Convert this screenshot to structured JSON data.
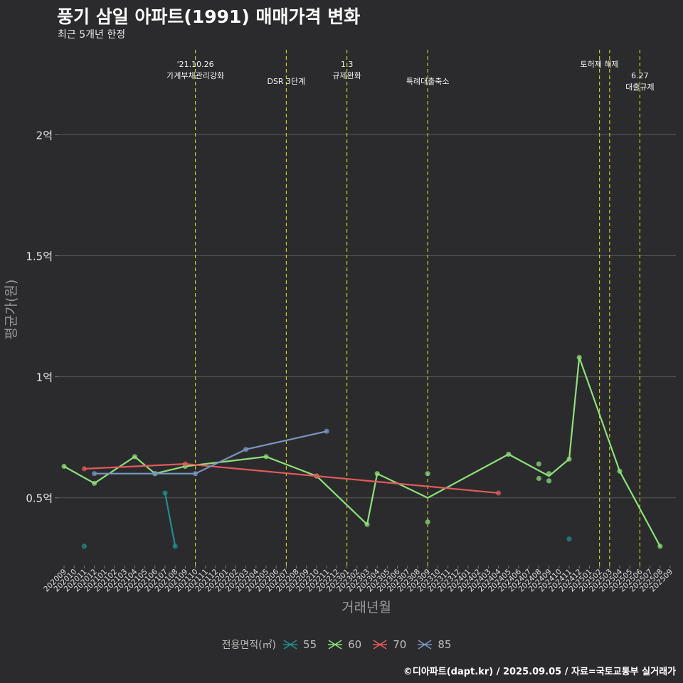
{
  "header": {
    "title": "풍기 삼일 아파트(1991) 매매가격 변화",
    "subtitle": "최근 5개년 한정"
  },
  "caption": "©디아파트(dapt.kr) / 2025.09.05 / 자료=국토교통부 실거래가",
  "legend": {
    "title": "전용면적(㎡)"
  },
  "colors": {
    "background": "#2b2b2d",
    "grid": "#5a5a5a",
    "event_line": "#c8cc1e",
    "s55": "#1f8f8f",
    "s60": "#8de07a",
    "s70": "#e25a5a",
    "s85": "#7a95c2"
  },
  "chart_data": {
    "type": "line",
    "title": "풍기 삼일 아파트(1991) 매매가격 변화",
    "xlabel": "거래년월",
    "ylabel": "평균가(원)",
    "ylim": [
      0.22,
      2.38
    ],
    "yticks": [
      {
        "value": 0.5,
        "label": "0.5억"
      },
      {
        "value": 1.0,
        "label": "1억"
      },
      {
        "value": 1.5,
        "label": "1.5억"
      },
      {
        "value": 2.0,
        "label": "2억"
      }
    ],
    "categories": [
      "202009",
      "202010",
      "202011",
      "202012",
      "202101",
      "202102",
      "202103",
      "202104",
      "202105",
      "202106",
      "202107",
      "202108",
      "202109",
      "202110",
      "202111",
      "202112",
      "202201",
      "202202",
      "202203",
      "202204",
      "202205",
      "202206",
      "202207",
      "202208",
      "202209",
      "202210",
      "202211",
      "202212",
      "202301",
      "202302",
      "202303",
      "202304",
      "202305",
      "202306",
      "202307",
      "202308",
      "202309",
      "202310",
      "202311",
      "202312",
      "202401",
      "202402",
      "202403",
      "202404",
      "202405",
      "202406",
      "202407",
      "202408",
      "202409",
      "202410",
      "202411",
      "202412",
      "202501",
      "202502",
      "202503",
      "202504",
      "202505",
      "202506",
      "202507",
      "202508",
      "202509"
    ],
    "events": [
      {
        "month": "202110",
        "lines": [
          "'21.10.26",
          "가계부채관리강화"
        ],
        "level": 0
      },
      {
        "month": "202207",
        "lines": [
          "DSR 3단계"
        ],
        "level": 1
      },
      {
        "month": "202301",
        "lines": [
          "1.3",
          "규제완화"
        ],
        "level": 0
      },
      {
        "month": "202309",
        "lines": [
          "특례대출축소"
        ],
        "level": 1
      },
      {
        "month": "202502",
        "lines": [
          "토허제 해제"
        ],
        "level": 0
      },
      {
        "month": "202503",
        "lines": [],
        "level": 0
      },
      {
        "month": "202506",
        "lines": [
          "6.27",
          "대출규제"
        ],
        "level": 2
      }
    ],
    "series": [
      {
        "name": "55",
        "line": [
          [
            "202107",
            0.52
          ],
          [
            "202108",
            0.3
          ]
        ],
        "points": [
          [
            "202011",
            0.3
          ],
          [
            "202107",
            0.52
          ],
          [
            "202108",
            0.3
          ],
          [
            "202411",
            0.33
          ]
        ]
      },
      {
        "name": "60",
        "line": [
          [
            "202009",
            0.63
          ],
          [
            "202012",
            0.56
          ],
          [
            "202104",
            0.67
          ],
          [
            "202106",
            0.6
          ],
          [
            "202109",
            0.63
          ],
          [
            "202205",
            0.67
          ],
          [
            "202210",
            0.59
          ],
          [
            "202303",
            0.39
          ],
          [
            "202304",
            0.6
          ],
          [
            "202309",
            0.5
          ],
          [
            "202405",
            0.68
          ],
          [
            "202409",
            0.59
          ],
          [
            "202411",
            0.66
          ],
          [
            "202412",
            1.08
          ],
          [
            "202504",
            0.61
          ],
          [
            "202508",
            0.3
          ]
        ],
        "points": [
          [
            "202009",
            0.63
          ],
          [
            "202012",
            0.56
          ],
          [
            "202104",
            0.67
          ],
          [
            "202106",
            0.6
          ],
          [
            "202109",
            0.63
          ],
          [
            "202205",
            0.67
          ],
          [
            "202210",
            0.59
          ],
          [
            "202303",
            0.39
          ],
          [
            "202304",
            0.6
          ],
          [
            "202309",
            0.6
          ],
          [
            "202309",
            0.4
          ],
          [
            "202405",
            0.68
          ],
          [
            "202408",
            0.64
          ],
          [
            "202408",
            0.58
          ],
          [
            "202409",
            0.6
          ],
          [
            "202409",
            0.57
          ],
          [
            "202411",
            0.66
          ],
          [
            "202412",
            1.08
          ],
          [
            "202504",
            0.61
          ],
          [
            "202508",
            0.3
          ]
        ]
      },
      {
        "name": "70",
        "line": [
          [
            "202011",
            0.62
          ],
          [
            "202109",
            0.64
          ],
          [
            "202210",
            0.59
          ],
          [
            "202404",
            0.52
          ]
        ],
        "points": [
          [
            "202011",
            0.62
          ],
          [
            "202109",
            0.64
          ],
          [
            "202210",
            0.59
          ],
          [
            "202404",
            0.52
          ]
        ]
      },
      {
        "name": "85",
        "line": [
          [
            "202012",
            0.6
          ],
          [
            "202106",
            0.6
          ],
          [
            "202110",
            0.6
          ],
          [
            "202203",
            0.7
          ],
          [
            "202211",
            0.775
          ]
        ],
        "points": [
          [
            "202012",
            0.6
          ],
          [
            "202106",
            0.6
          ],
          [
            "202110",
            0.6
          ],
          [
            "202203",
            0.7
          ],
          [
            "202211",
            0.775
          ]
        ]
      }
    ]
  }
}
